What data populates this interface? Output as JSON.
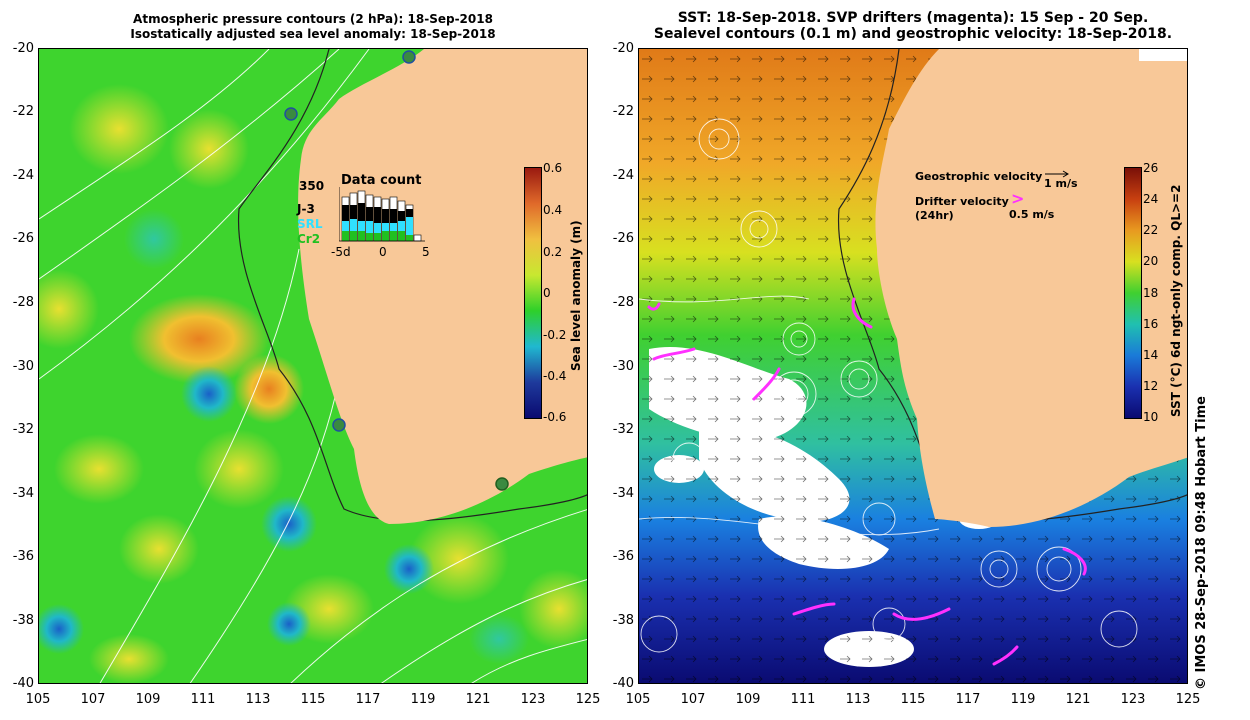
{
  "left_panel": {
    "title_line1": "Atmospheric pressure contours (2 hPa): 18-Sep-2018",
    "title_line2": "Isostatically adjusted sea level anomaly: 18-Sep-2018",
    "colorbar": {
      "label": "Sea level anomaly (m)",
      "ticks": [
        "0.6",
        "0.4",
        "0.2",
        "0",
        "-0.2",
        "-0.4",
        "-0.6"
      ],
      "colors": [
        "#9a1a10",
        "#e06a2a",
        "#f0c040",
        "#c8e830",
        "#2ed02a",
        "#20b8d0",
        "#1e3a9c",
        "#0a0a70"
      ]
    },
    "inset": {
      "title": "Data count",
      "y_label": "350",
      "legend": [
        {
          "name": "J-3",
          "color": "#000000"
        },
        {
          "name": "SRL",
          "color": "#30e0ff"
        },
        {
          "name": "Cr2",
          "color": "#20c020"
        }
      ],
      "x_ticks": [
        "-5d",
        "0",
        "5"
      ]
    }
  },
  "right_panel": {
    "title_line1": "SST: 18-Sep-2018. SVP drifters (magenta): 15 Sep - 20 Sep.",
    "title_line2": "Sealevel contours (0.1 m) and geostrophic velocity: 18-Sep-2018.",
    "legend": {
      "geo_label": "Geostrophic velocity",
      "geo_scale": "1 m/s",
      "drifter_label": "Drifter velocity",
      "drifter_sub": "(24hr)",
      "drifter_scale": "0.5 m/s",
      "drifter_glyph": ">"
    },
    "colorbar": {
      "label": "SST (°C) 6d ngt-only comp. QL>=2",
      "ticks": [
        "26",
        "24",
        "22",
        "20",
        "18",
        "16",
        "14",
        "12",
        "10"
      ],
      "colors": [
        "#7a1008",
        "#c84010",
        "#e89a20",
        "#d8e020",
        "#40d030",
        "#20c0b0",
        "#1a7ad8",
        "#1a30b0",
        "#0a0a70"
      ]
    }
  },
  "axes": {
    "y_ticks": [
      "-20",
      "-22",
      "-24",
      "-26",
      "-28",
      "-30",
      "-32",
      "-34",
      "-36",
      "-38",
      "-40"
    ],
    "x_ticks": [
      "105",
      "107",
      "109",
      "111",
      "113",
      "115",
      "117",
      "119",
      "121",
      "123",
      "125"
    ]
  },
  "credit": "© IMOS 28-Sep-2018 09:48 Hobart Time",
  "colors": {
    "land": "#f8c898",
    "sea_green": "#3ed42e",
    "drifter": "#ff30ff"
  }
}
